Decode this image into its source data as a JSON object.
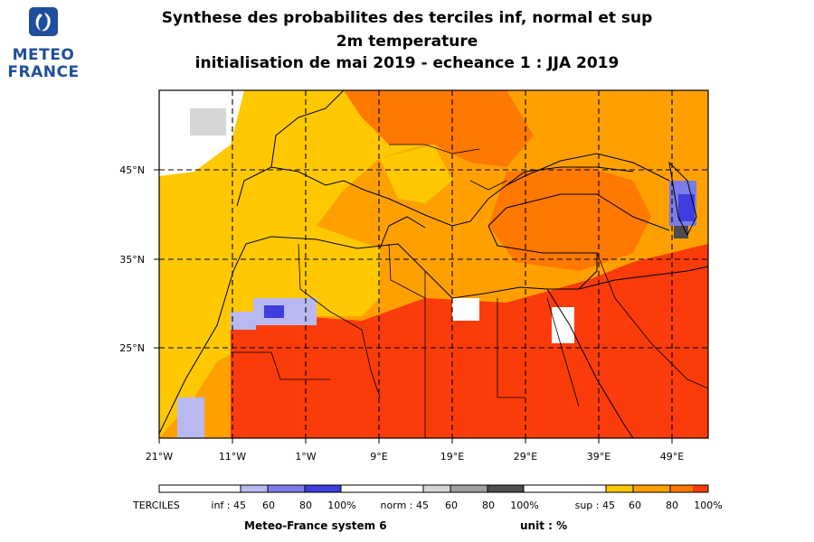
{
  "logo": {
    "line1": "METEO",
    "line2": "FRANCE"
  },
  "title": {
    "line1": "Synthese des probabilites des terciles inf, normal et sup",
    "line2": "2m temperature",
    "line3": "initialisation de mai 2019  -  echeance 1 : JJA 2019"
  },
  "axes": {
    "lon_labels": [
      "21°W",
      "11°W",
      "1°W",
      "9°E",
      "19°E",
      "29°E",
      "39°E",
      "49°E"
    ],
    "lat_labels": [
      "45°N",
      "35°N",
      "25°N"
    ]
  },
  "legend": {
    "terciles_label": "TERCILES",
    "inf": {
      "label": "inf : 45",
      "ticks": [
        "60",
        "80",
        "100%"
      ],
      "colors": [
        "#b9b9f2",
        "#7b7bea",
        "#3e3ee0"
      ]
    },
    "norm": {
      "label": "norm : 45",
      "ticks": [
        "60",
        "80",
        "100%"
      ],
      "colors": [
        "#d6d6d6",
        "#a0a0a0",
        "#4d4d4d"
      ]
    },
    "sup": {
      "label": "sup : 45",
      "ticks": [
        "60",
        "80",
        "100%"
      ],
      "colors": [
        "#ffc800",
        "#ffa000",
        "#ff7800",
        "#fa3c0a"
      ]
    }
  },
  "footer": {
    "system": "Meteo-France system 6",
    "unit": "unit : %"
  }
}
